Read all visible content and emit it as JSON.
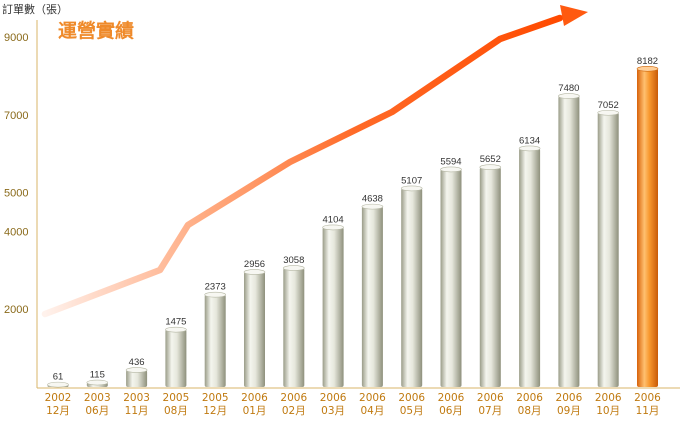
{
  "chart_data": {
    "type": "bar",
    "title": "運營實績",
    "ylabel": "訂單數（張）",
    "xlabel": "",
    "yticks": [
      2000,
      4000,
      5000,
      7000,
      9000
    ],
    "ylim": [
      0,
      9300
    ],
    "categories": [
      [
        "2002",
        "12月"
      ],
      [
        "2003",
        "06月"
      ],
      [
        "2003",
        "11月"
      ],
      [
        "2005",
        "08月"
      ],
      [
        "2005",
        "12月"
      ],
      [
        "2006",
        "01月"
      ],
      [
        "2006",
        "02月"
      ],
      [
        "2006",
        "03月"
      ],
      [
        "2006",
        "04月"
      ],
      [
        "2006",
        "05月"
      ],
      [
        "2006",
        "06月"
      ],
      [
        "2006",
        "07月"
      ],
      [
        "2006",
        "08月"
      ],
      [
        "2006",
        "09月"
      ],
      [
        "2006",
        "10月"
      ],
      [
        "2006",
        "11月"
      ]
    ],
    "values": [
      61,
      115,
      436,
      1475,
      2373,
      2956,
      3058,
      4104,
      4638,
      5107,
      5594,
      5652,
      6134,
      7480,
      7052,
      8182
    ],
    "highlight_index": 15,
    "grid": false,
    "colors": {
      "bar": "#c9cbb8",
      "highlight": "#f08a20",
      "axis": "#d9b66a",
      "trend_arrow": "#ff5a10",
      "title": "#ef8a2a"
    }
  }
}
